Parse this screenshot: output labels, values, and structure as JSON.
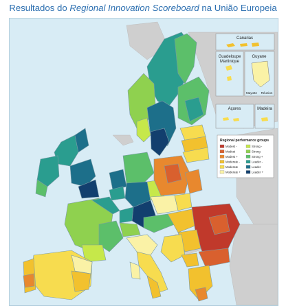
{
  "title": {
    "prefix": "Resultados do ",
    "italic": "Regional Innovation Scoreboard",
    "suffix": " na União Europeia"
  },
  "insets": {
    "canarias": "Canarias",
    "guadeloupe": "Guadeloupe",
    "martinique": "Martinique",
    "guyane": "Guyane",
    "mayotte": "Mayotte",
    "reunion": "Réunion",
    "acores": "Açores",
    "madeira": "Madeira"
  },
  "legend": {
    "title": "Regional performance groups",
    "items": [
      {
        "label": "Modest -",
        "color": "#c0392b"
      },
      {
        "label": "Modest",
        "color": "#d9602e"
      },
      {
        "label": "Modest +",
        "color": "#e8882e"
      },
      {
        "label": "Moderate -",
        "color": "#f2c12e"
      },
      {
        "label": "Moderate",
        "color": "#f7dc4f"
      },
      {
        "label": "Moderate +",
        "color": "#faf2a6"
      },
      {
        "label": "Strong -",
        "color": "#c6e84a"
      },
      {
        "label": "Strong",
        "color": "#8fd14f"
      },
      {
        "label": "Strong +",
        "color": "#5cbf6a"
      },
      {
        "label": "Leader -",
        "color": "#2a9d8f"
      },
      {
        "label": "Leader",
        "color": "#1d6f8a"
      },
      {
        "label": "Leader +",
        "color": "#123f6e"
      }
    ]
  }
}
